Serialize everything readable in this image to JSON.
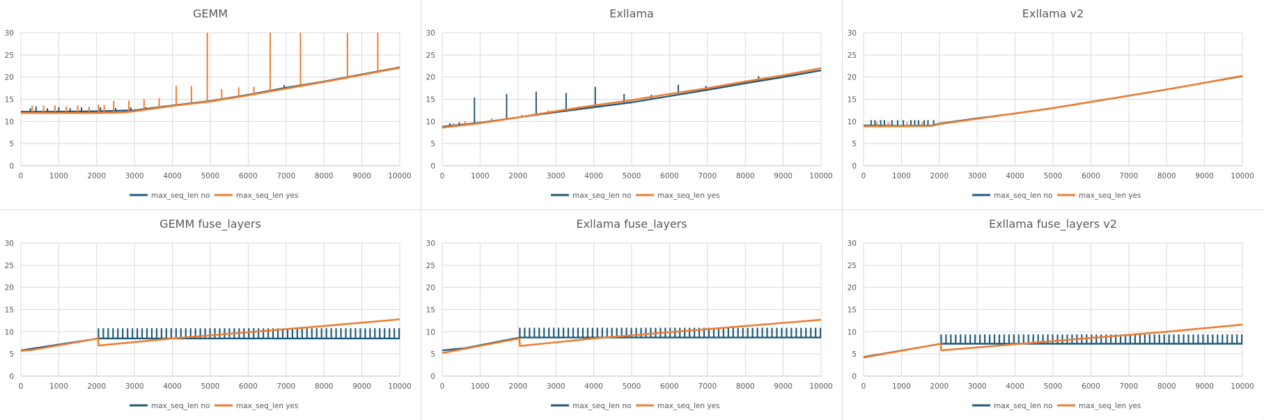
{
  "chart_data": [
    {
      "type": "line",
      "title": "GEMM",
      "xlim": [
        0,
        10000
      ],
      "ylim": [
        0,
        30
      ],
      "xticks": [
        0,
        1000,
        2000,
        3000,
        4000,
        5000,
        6000,
        7000,
        8000,
        9000,
        10000
      ],
      "yticks": [
        0,
        5,
        10,
        15,
        20,
        25,
        30
      ],
      "grid": true,
      "legend": "bottom",
      "series": [
        {
          "name": "max_seq_len no",
          "color": "#1f5a7a",
          "points": [
            [
              0,
              12.2
            ],
            [
              1000,
              12.2
            ],
            [
              2000,
              12.3
            ],
            [
              3000,
              12.5
            ],
            [
              4000,
              13.6
            ],
            [
              5000,
              14.6
            ],
            [
              6000,
              16.0
            ],
            [
              7000,
              17.6
            ],
            [
              8000,
              19.0
            ],
            [
              9000,
              20.6
            ],
            [
              10000,
              22.2
            ]
          ],
          "spikes": [
            [
              250,
              13.0
            ],
            [
              400,
              13.4
            ],
            [
              700,
              13.0
            ],
            [
              1000,
              13.2
            ],
            [
              1300,
              13.0
            ],
            [
              1600,
              13.2
            ],
            [
              2100,
              13.2
            ],
            [
              2500,
              13.0
            ],
            [
              2900,
              13.2
            ],
            [
              3300,
              13.2
            ],
            [
              6950,
              18.2
            ]
          ]
        },
        {
          "name": "max_seq_len yes",
          "color": "#ed7d31",
          "points": [
            [
              0,
              11.9
            ],
            [
              1000,
              11.9
            ],
            [
              2000,
              11.9
            ],
            [
              2700,
              12.0
            ],
            [
              3000,
              12.3
            ],
            [
              4000,
              13.5
            ],
            [
              5000,
              14.5
            ],
            [
              6000,
              15.9
            ],
            [
              7000,
              17.4
            ],
            [
              8000,
              18.9
            ],
            [
              9000,
              20.5
            ],
            [
              10000,
              22.1
            ]
          ],
          "spikes": [
            [
              300,
              13.6
            ],
            [
              600,
              13.6
            ],
            [
              900,
              13.6
            ],
            [
              1200,
              13.4
            ],
            [
              1500,
              13.6
            ],
            [
              1800,
              13.3
            ],
            [
              2050,
              13.8
            ],
            [
              2200,
              13.7
            ],
            [
              2450,
              14.6
            ],
            [
              2850,
              14.7
            ],
            [
              3250,
              15.0
            ],
            [
              3650,
              15.3
            ],
            [
              4100,
              18.0
            ],
            [
              4500,
              18.0
            ],
            [
              4920,
              30
            ],
            [
              5300,
              17.3
            ],
            [
              5750,
              17.7
            ],
            [
              6150,
              17.8
            ],
            [
              6580,
              30
            ],
            [
              7380,
              30
            ],
            [
              8620,
              30
            ],
            [
              9420,
              30
            ]
          ]
        }
      ]
    },
    {
      "type": "line",
      "title": "Exllama",
      "xlim": [
        0,
        10000
      ],
      "ylim": [
        0,
        30
      ],
      "xticks": [
        0,
        1000,
        2000,
        3000,
        4000,
        5000,
        6000,
        7000,
        8000,
        9000,
        10000
      ],
      "yticks": [
        0,
        5,
        10,
        15,
        20,
        25,
        30
      ],
      "grid": true,
      "legend": "bottom",
      "series": [
        {
          "name": "max_seq_len no",
          "color": "#1f5a7a",
          "points": [
            [
              0,
              8.8
            ],
            [
              1000,
              9.7
            ],
            [
              2000,
              10.9
            ],
            [
              3000,
              12.1
            ],
            [
              4000,
              13.2
            ],
            [
              5000,
              14.3
            ],
            [
              6000,
              15.7
            ],
            [
              7000,
              17.1
            ],
            [
              8000,
              18.6
            ],
            [
              9000,
              20.0
            ],
            [
              10000,
              21.5
            ]
          ],
          "spikes": [
            [
              200,
              9.6
            ],
            [
              450,
              9.8
            ],
            [
              850,
              15.4
            ],
            [
              1700,
              16.2
            ],
            [
              2480,
              16.7
            ],
            [
              3270,
              16.4
            ],
            [
              4040,
              17.8
            ],
            [
              4800,
              16.2
            ],
            [
              5520,
              16.0
            ],
            [
              6230,
              18.3
            ],
            [
              6960,
              18.0
            ],
            [
              8350,
              20.2
            ]
          ]
        },
        {
          "name": "max_seq_len yes",
          "color": "#ed7d31",
          "points": [
            [
              0,
              8.6
            ],
            [
              1000,
              9.6
            ],
            [
              2000,
              10.9
            ],
            [
              3000,
              12.3
            ],
            [
              4000,
              13.6
            ],
            [
              5000,
              14.8
            ],
            [
              6000,
              16.2
            ],
            [
              7000,
              17.5
            ],
            [
              8000,
              19.0
            ],
            [
              9000,
              20.4
            ],
            [
              10000,
              22.0
            ]
          ],
          "spikes": [
            [
              300,
              9.6
            ],
            [
              600,
              10.0
            ],
            [
              1300,
              10.7
            ],
            [
              2100,
              11.5
            ],
            [
              2800,
              12.5
            ],
            [
              3600,
              13.4
            ]
          ]
        }
      ]
    },
    {
      "type": "line",
      "title": "Exllama v2",
      "xlim": [
        0,
        10000
      ],
      "ylim": [
        0,
        30
      ],
      "xticks": [
        0,
        1000,
        2000,
        3000,
        4000,
        5000,
        6000,
        7000,
        8000,
        9000,
        10000
      ],
      "yticks": [
        0,
        5,
        10,
        15,
        20,
        25,
        30
      ],
      "grid": true,
      "legend": "bottom",
      "series": [
        {
          "name": "max_seq_len no",
          "color": "#1f5a7a",
          "points": [
            [
              0,
              9.1
            ],
            [
              1000,
              9.0
            ],
            [
              1800,
              9.1
            ],
            [
              2000,
              9.5
            ],
            [
              3000,
              10.7
            ],
            [
              4000,
              11.8
            ],
            [
              5000,
              13.0
            ],
            [
              6000,
              14.4
            ],
            [
              7000,
              15.8
            ],
            [
              8000,
              17.2
            ],
            [
              9000,
              18.7
            ],
            [
              10000,
              20.2
            ]
          ],
          "spikes": [
            [
              200,
              10.3
            ],
            [
              300,
              10.3
            ],
            [
              450,
              10.3
            ],
            [
              550,
              10.3
            ],
            [
              750,
              10.3
            ],
            [
              900,
              10.3
            ],
            [
              1050,
              10.3
            ],
            [
              1250,
              10.3
            ],
            [
              1350,
              10.3
            ],
            [
              1450,
              10.3
            ],
            [
              1600,
              10.3
            ],
            [
              1700,
              10.3
            ],
            [
              1850,
              10.3
            ]
          ]
        },
        {
          "name": "max_seq_len yes",
          "color": "#ed7d31",
          "points": [
            [
              0,
              8.9
            ],
            [
              1000,
              8.9
            ],
            [
              1800,
              9.0
            ],
            [
              2000,
              9.4
            ],
            [
              3000,
              10.6
            ],
            [
              4000,
              11.8
            ],
            [
              5000,
              13.0
            ],
            [
              6000,
              14.4
            ],
            [
              7000,
              15.8
            ],
            [
              8000,
              17.2
            ],
            [
              9000,
              18.7
            ],
            [
              10000,
              20.3
            ]
          ],
          "spikes": [
            [
              350,
              9.8
            ],
            [
              650,
              9.8
            ],
            [
              1150,
              9.8
            ],
            [
              1550,
              9.8
            ]
          ]
        }
      ]
    },
    {
      "type": "line",
      "title": "GEMM fuse_layers",
      "xlim": [
        0,
        10000
      ],
      "ylim": [
        0,
        30
      ],
      "xticks": [
        0,
        1000,
        2000,
        3000,
        4000,
        5000,
        6000,
        7000,
        8000,
        9000,
        10000
      ],
      "yticks": [
        0,
        5,
        10,
        15,
        20,
        25,
        30
      ],
      "grid": true,
      "legend": "bottom",
      "series": [
        {
          "name": "max_seq_len no",
          "color": "#1f5a7a",
          "points": [
            [
              0,
              5.8
            ],
            [
              2048,
              8.5
            ],
            [
              10000,
              8.5
            ]
          ],
          "comb": {
            "from": 2048,
            "to": 10000,
            "step": 128,
            "top": 10.8,
            "base": 8.5
          }
        },
        {
          "name": "max_seq_len yes",
          "color": "#ed7d31",
          "points": [
            [
              0,
              5.7
            ],
            [
              300,
              5.9
            ],
            [
              2040,
              8.5
            ],
            [
              2050,
              6.9
            ],
            [
              4000,
              8.5
            ],
            [
              6000,
              9.9
            ],
            [
              8000,
              11.3
            ],
            [
              10000,
              12.8
            ]
          ]
        }
      ]
    },
    {
      "type": "line",
      "title": "Exllama fuse_layers",
      "xlim": [
        0,
        10000
      ],
      "ylim": [
        0,
        30
      ],
      "xticks": [
        0,
        1000,
        2000,
        3000,
        4000,
        5000,
        6000,
        7000,
        8000,
        9000,
        10000
      ],
      "yticks": [
        0,
        5,
        10,
        15,
        20,
        25,
        30
      ],
      "grid": true,
      "legend": "bottom",
      "series": [
        {
          "name": "max_seq_len no",
          "color": "#1f5a7a",
          "points": [
            [
              0,
              5.8
            ],
            [
              600,
              6.3
            ],
            [
              2048,
              8.7
            ],
            [
              10000,
              8.7
            ]
          ],
          "comb": {
            "from": 2048,
            "to": 10000,
            "step": 128,
            "top": 10.9,
            "base": 8.7
          }
        },
        {
          "name": "max_seq_len yes",
          "color": "#ed7d31",
          "points": [
            [
              0,
              5.2
            ],
            [
              2040,
              8.5
            ],
            [
              2050,
              6.8
            ],
            [
              4000,
              8.5
            ],
            [
              6000,
              9.9
            ],
            [
              8000,
              11.3
            ],
            [
              10000,
              12.7
            ]
          ]
        }
      ]
    },
    {
      "type": "line",
      "title": "Exllama fuse_layers v2",
      "xlim": [
        0,
        10000
      ],
      "ylim": [
        0,
        30
      ],
      "xticks": [
        0,
        1000,
        2000,
        3000,
        4000,
        5000,
        6000,
        7000,
        8000,
        9000,
        10000
      ],
      "yticks": [
        0,
        5,
        10,
        15,
        20,
        25,
        30
      ],
      "grid": true,
      "legend": "bottom",
      "series": [
        {
          "name": "max_seq_len no",
          "color": "#1f5a7a",
          "points": [
            [
              0,
              4.3
            ],
            [
              2048,
              7.3
            ],
            [
              10000,
              7.3
            ]
          ],
          "comb": {
            "from": 2048,
            "to": 10000,
            "step": 128,
            "top": 9.4,
            "base": 7.3
          }
        },
        {
          "name": "max_seq_len yes",
          "color": "#ed7d31",
          "points": [
            [
              0,
              4.2
            ],
            [
              2040,
              7.3
            ],
            [
              2050,
              5.8
            ],
            [
              4000,
              7.2
            ],
            [
              6000,
              8.6
            ],
            [
              8000,
              10.0
            ],
            [
              10000,
              11.6
            ]
          ]
        }
      ]
    }
  ]
}
